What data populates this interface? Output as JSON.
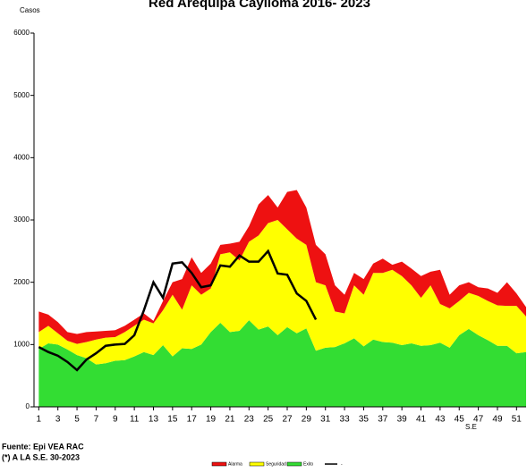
{
  "chart_data": {
    "type": "stacked_area_line",
    "title": "Red Arequipa Caylloma 2016- 2023",
    "y_label": "Casos",
    "x_label": "S.E",
    "notes": [
      "Fuente: Epi VEA RAC",
      "(*) A LA S.E. 30-2023"
    ],
    "x": [
      1,
      2,
      3,
      4,
      5,
      6,
      7,
      8,
      9,
      10,
      11,
      12,
      13,
      14,
      15,
      16,
      17,
      18,
      19,
      20,
      21,
      22,
      23,
      24,
      25,
      26,
      27,
      28,
      29,
      30,
      31,
      32,
      33,
      34,
      35,
      36,
      37,
      38,
      39,
      40,
      41,
      42,
      43,
      44,
      45,
      46,
      47,
      48,
      49,
      50,
      51,
      52
    ],
    "xlim": [
      0.5,
      52
    ],
    "xticks": [
      1,
      3,
      5,
      7,
      9,
      11,
      13,
      15,
      17,
      19,
      21,
      23,
      25,
      27,
      29,
      31,
      33,
      35,
      37,
      39,
      41,
      43,
      45,
      47,
      49,
      51
    ],
    "ylim": [
      0,
      6000
    ],
    "yticks": [
      0,
      1000,
      2000,
      3000,
      4000,
      5000,
      6000
    ],
    "series": [
      {
        "name": "Exito",
        "color": "#33dd33",
        "kind": "area",
        "values": [
          930,
          1020,
          1000,
          920,
          830,
          780,
          680,
          700,
          740,
          750,
          810,
          880,
          830,
          990,
          810,
          940,
          930,
          1000,
          1200,
          1350,
          1200,
          1220,
          1390,
          1240,
          1290,
          1150,
          1280,
          1180,
          1260,
          900,
          950,
          960,
          1020,
          1100,
          970,
          1080,
          1040,
          1030,
          990,
          1020,
          980,
          990,
          1030,
          950,
          1150,
          1250,
          1150,
          1070,
          980,
          980,
          860,
          880
        ]
      },
      {
        "name": "Seguridad",
        "color": "#ffff00",
        "kind": "area",
        "values": [
          270,
          280,
          180,
          140,
          180,
          260,
          400,
          410,
          380,
          450,
          490,
          520,
          510,
          560,
          990,
          620,
          1020,
          800,
          700,
          1100,
          1280,
          1130,
          1260,
          1510,
          1660,
          1850,
          1570,
          1520,
          1340,
          1100,
          1000,
          570,
          480,
          850,
          830,
          1070,
          1110,
          1170,
          1110,
          930,
          770,
          960,
          620,
          630,
          550,
          580,
          630,
          630,
          650,
          640,
          760,
          570
        ]
      },
      {
        "name": "Alarma",
        "color": "#ee1111",
        "kind": "area",
        "values": [
          330,
          180,
          180,
          140,
          160,
          160,
          130,
          110,
          110,
          100,
          100,
          100,
          40,
          150,
          200,
          490,
          450,
          350,
          400,
          150,
          140,
          300,
          250,
          500,
          450,
          200,
          600,
          780,
          600,
          600,
          500,
          420,
          300,
          200,
          250,
          150,
          230,
          80,
          230,
          270,
          350,
          220,
          550,
          220,
          250,
          170,
          140,
          200,
          200,
          380,
          200,
          150
        ]
      },
      {
        "name": "-",
        "color": "#000000",
        "kind": "line",
        "values": [
          960,
          880,
          820,
          720,
          590,
          760,
          860,
          980,
          1000,
          1010,
          1150,
          1550,
          2000,
          1750,
          2300,
          2320,
          2150,
          1920,
          1950,
          2270,
          2250,
          2430,
          2330,
          2330,
          2500,
          2140,
          2120,
          1820,
          1700,
          1400,
          null,
          null,
          null,
          null,
          null,
          null,
          null,
          null,
          null,
          null,
          null,
          null,
          null,
          null,
          null,
          null,
          null,
          null,
          null,
          null,
          null,
          null
        ]
      }
    ]
  }
}
